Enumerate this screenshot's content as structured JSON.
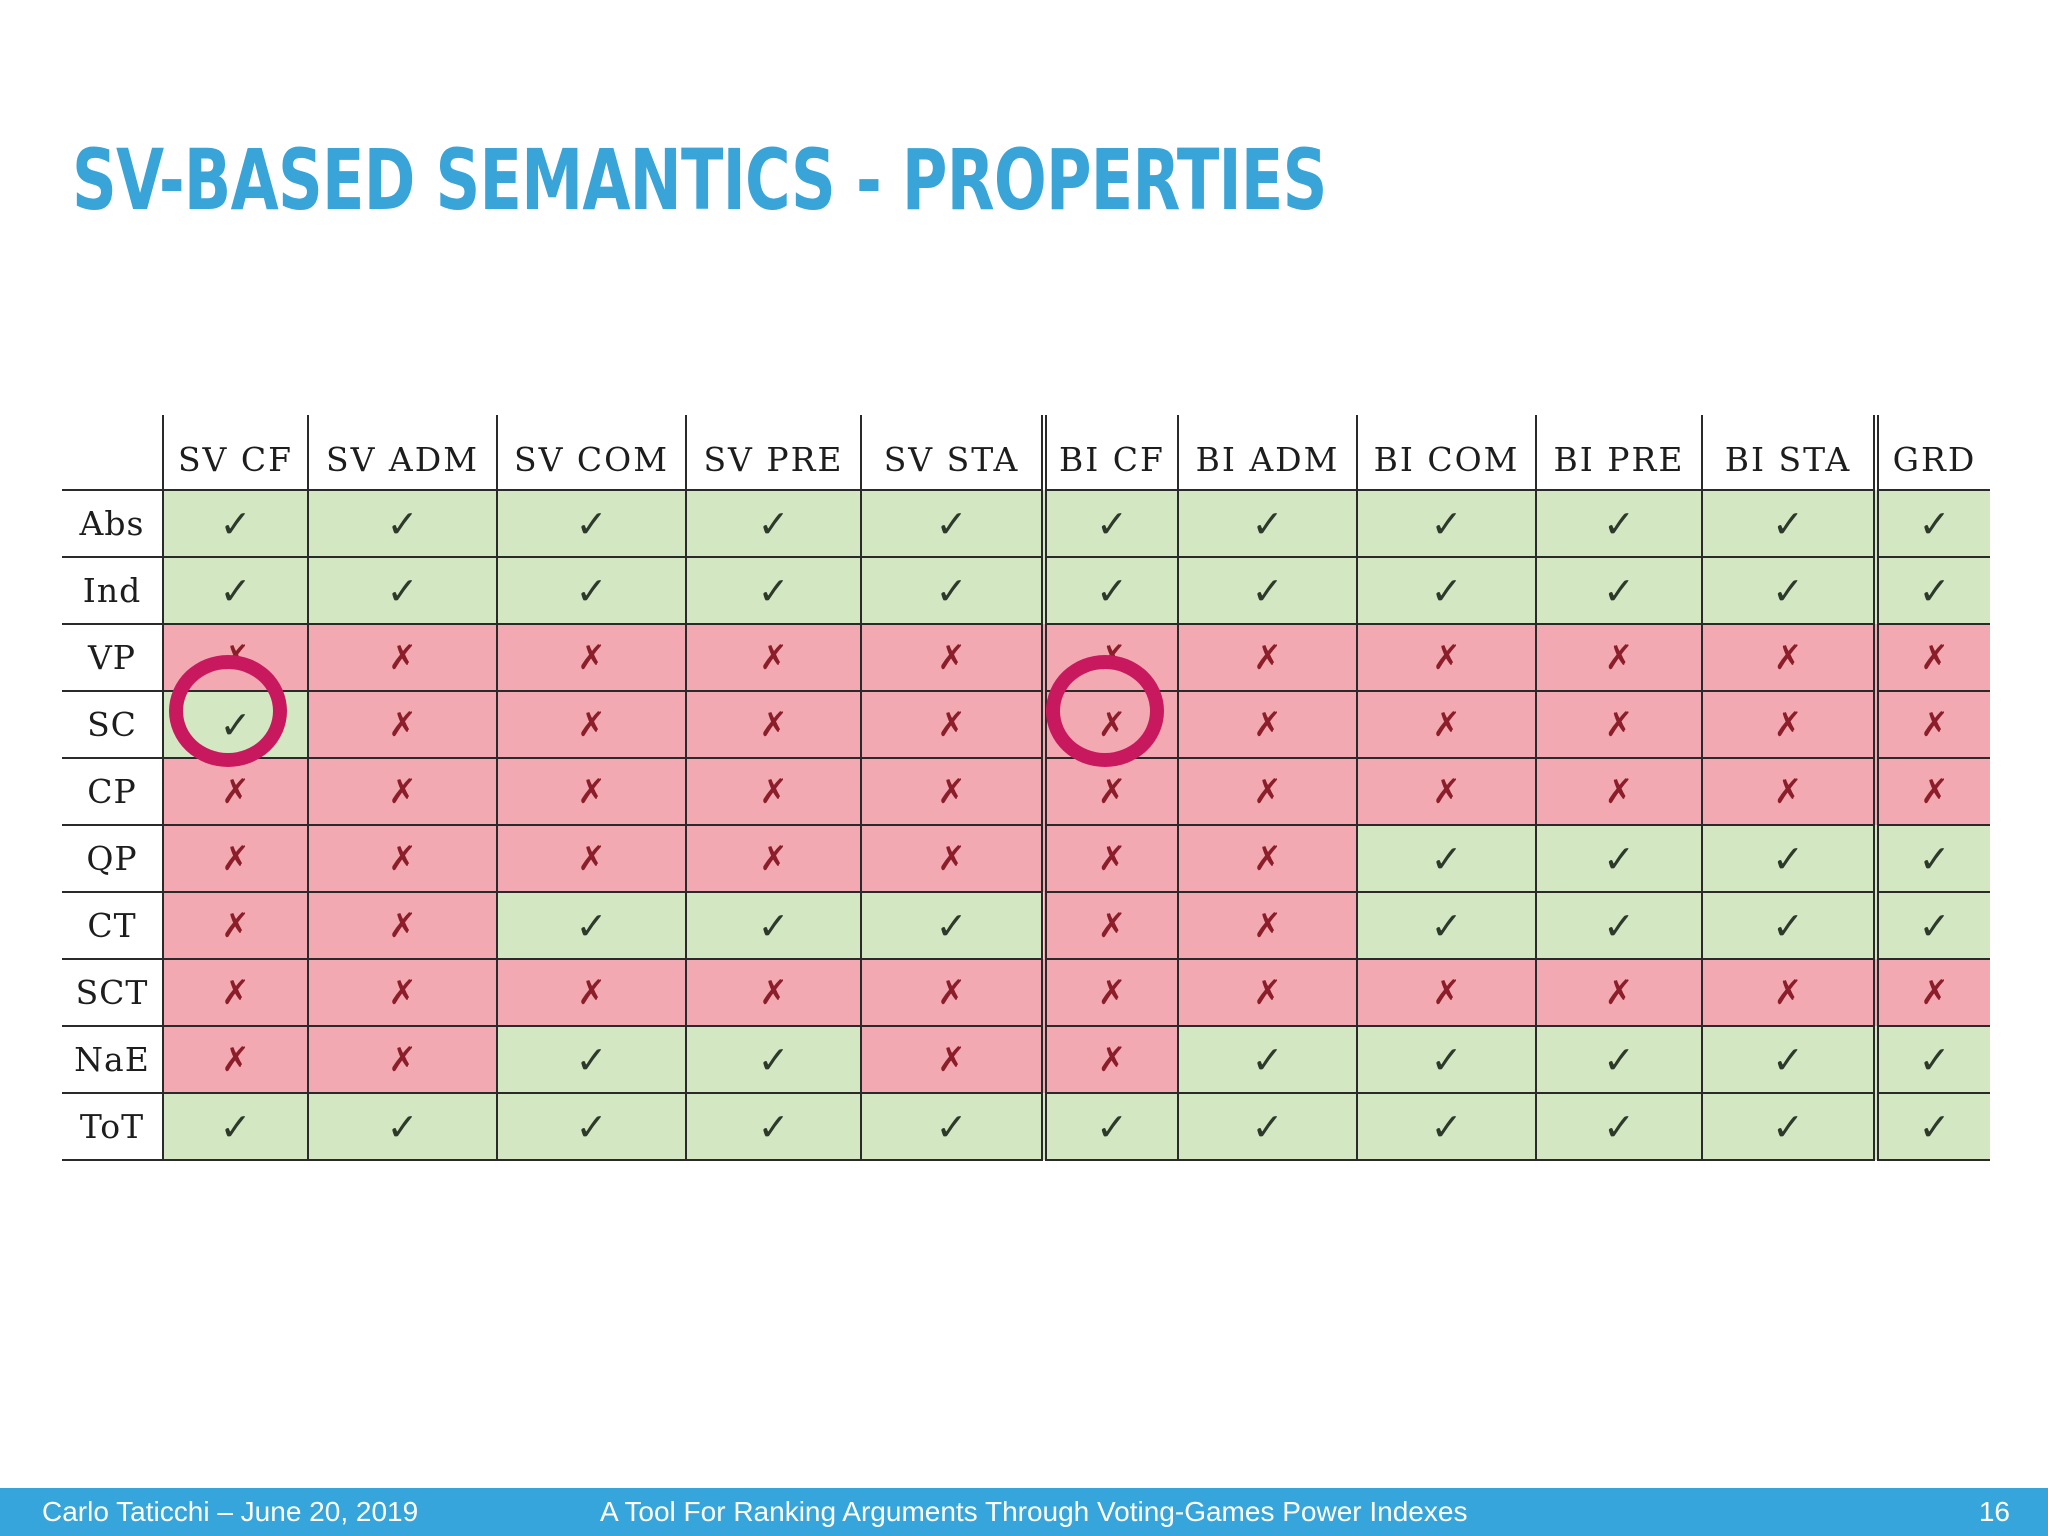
{
  "slide": {
    "title": "SV-BASED SEMANTICS - PROPERTIES"
  },
  "table": {
    "columns": [
      "SV CF",
      "SV ADM",
      "SV COM",
      "SV PRE",
      "SV STA",
      "BI CF",
      "BI ADM",
      "BI COM",
      "BI PRE",
      "BI STA",
      "GRD"
    ],
    "rows": [
      {
        "label": "Abs",
        "cells": [
          "✓",
          "✓",
          "✓",
          "✓",
          "✓",
          "✓",
          "✓",
          "✓",
          "✓",
          "✓",
          "✓"
        ]
      },
      {
        "label": "Ind",
        "cells": [
          "✓",
          "✓",
          "✓",
          "✓",
          "✓",
          "✓",
          "✓",
          "✓",
          "✓",
          "✓",
          "✓"
        ]
      },
      {
        "label": "VP",
        "cells": [
          "✗",
          "✗",
          "✗",
          "✗",
          "✗",
          "✗",
          "✗",
          "✗",
          "✗",
          "✗",
          "✗"
        ]
      },
      {
        "label": "SC",
        "cells": [
          "✓",
          "✗",
          "✗",
          "✗",
          "✗",
          "✗",
          "✗",
          "✗",
          "✗",
          "✗",
          "✗"
        ]
      },
      {
        "label": "CP",
        "cells": [
          "✗",
          "✗",
          "✗",
          "✗",
          "✗",
          "✗",
          "✗",
          "✗",
          "✗",
          "✗",
          "✗"
        ]
      },
      {
        "label": "QP",
        "cells": [
          "✗",
          "✗",
          "✗",
          "✗",
          "✗",
          "✗",
          "✗",
          "✓",
          "✓",
          "✓",
          "✓"
        ]
      },
      {
        "label": "CT",
        "cells": [
          "✗",
          "✗",
          "✓",
          "✓",
          "✓",
          "✗",
          "✗",
          "✓",
          "✓",
          "✓",
          "✓"
        ]
      },
      {
        "label": "SCT",
        "cells": [
          "✗",
          "✗",
          "✗",
          "✗",
          "✗",
          "✗",
          "✗",
          "✗",
          "✗",
          "✗",
          "✗"
        ]
      },
      {
        "label": "NaE",
        "cells": [
          "✗",
          "✗",
          "✓",
          "✓",
          "✗",
          "✗",
          "✓",
          "✓",
          "✓",
          "✓",
          "✓"
        ]
      },
      {
        "label": "ToT",
        "cells": [
          "✓",
          "✓",
          "✓",
          "✓",
          "✓",
          "✓",
          "✓",
          "✓",
          "✓",
          "✓",
          "✓"
        ]
      }
    ],
    "colors": {
      "positive": "#d3e8c2",
      "negative": "#f3a9b2",
      "highlight_circle": "#c8195f"
    },
    "highlighted_cells": [
      {
        "row": "SC",
        "column": "SV CF"
      },
      {
        "row": "SC",
        "column": "BI CF"
      }
    ]
  },
  "footer": {
    "author_date": "Carlo Taticchi – June 20, 2019",
    "talk_title": "A Tool For Ranking Arguments Through Voting-Games Power Indexes",
    "page_number": "16"
  }
}
